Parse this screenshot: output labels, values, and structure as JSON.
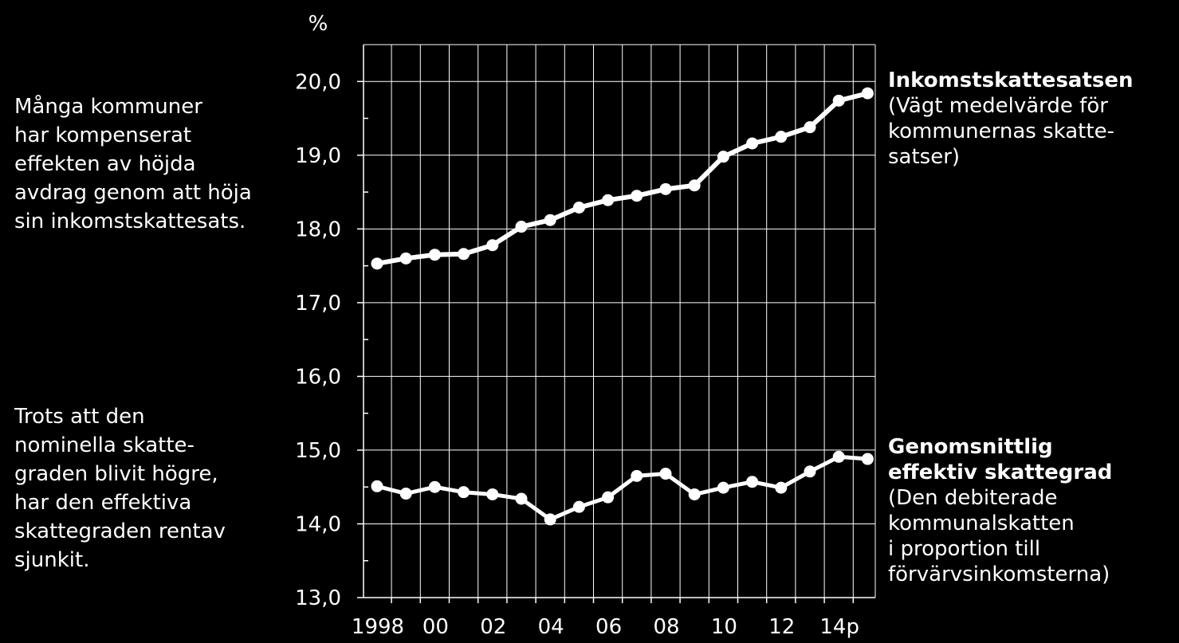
{
  "notes": {
    "top": "Många kommuner\nhar kompenserat\neffekten av höjda\navdrag genom att höja\nsin inkomstskattesats.",
    "bottom": "Trots att den\nnominella skatte-\ngraden blivit högre,\nhar den effektiva\nskattegraden rentav\nsjunkit."
  },
  "labels": {
    "income_head": "Inkomstskattesatsen",
    "income_sub": "(Vägt medelvärde för\nkommunernas skatte-\nsatser)",
    "effective_head": "Genomsnittlig\neffektiv skattegrad",
    "effective_sub": "(Den debiterade\nkommunalskatten\ni proportion till\nförvärvsinkomsterna)"
  },
  "chart_data": {
    "type": "line",
    "ylabel": "%",
    "ylim": [
      13,
      20.5
    ],
    "y_ticks": [
      "13,0",
      "14,0",
      "15,0",
      "16,0",
      "17,0",
      "18,0",
      "19,0",
      "20,0"
    ],
    "x_tick_labels": [
      "1998",
      "00",
      "02",
      "04",
      "06",
      "08",
      "10",
      "12",
      "14p"
    ],
    "x": [
      1998,
      1999,
      2000,
      2001,
      2002,
      2003,
      2004,
      2005,
      2006,
      2007,
      2008,
      2009,
      2010,
      2011,
      2012,
      2013,
      2014,
      2015
    ],
    "series": [
      {
        "name": "Inkomstskattesatsen",
        "values": [
          17.53,
          17.6,
          17.65,
          17.66,
          17.78,
          18.03,
          18.12,
          18.29,
          18.39,
          18.45,
          18.54,
          18.59,
          18.98,
          19.16,
          19.25,
          19.38,
          19.74,
          19.84
        ]
      },
      {
        "name": "Genomsnittlig effektiv skattegrad",
        "values": [
          14.51,
          14.41,
          14.5,
          14.43,
          14.4,
          14.34,
          14.06,
          14.23,
          14.36,
          14.65,
          14.68,
          14.4,
          14.49,
          14.57,
          14.49,
          14.71,
          14.91,
          14.88
        ]
      }
    ],
    "grid": true,
    "style": {
      "background": "#000000",
      "line_color": "#ffffff",
      "grid_color": "#ffffff"
    }
  }
}
